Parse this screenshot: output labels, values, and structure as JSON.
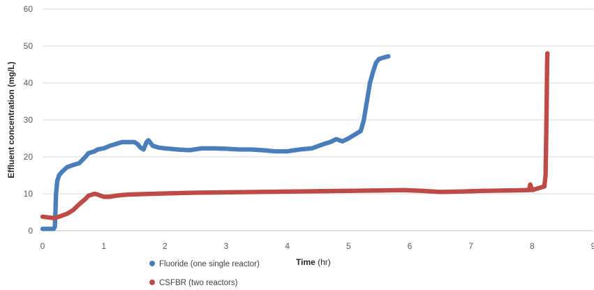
{
  "chart_data": {
    "type": "scatter",
    "title": "",
    "xlabel": {
      "bold": "Time",
      "rest": " (hr)"
    },
    "ylabel": "Effluent concentration (mg/L)",
    "xlim": [
      0,
      9
    ],
    "ylim": [
      0,
      60
    ],
    "x_ticks": [
      "0",
      "1",
      "2",
      "3",
      "4",
      "5",
      "6",
      "7",
      "8",
      "9"
    ],
    "y_ticks": [
      "0",
      "10",
      "20",
      "30",
      "40",
      "50",
      "60"
    ],
    "grid": {
      "horizontal": true,
      "vertical": false
    },
    "legend_position": "bottom-left",
    "series": [
      {
        "name": "Fluoride (one single reactor)",
        "color": "#4a7ebb",
        "points": [
          [
            0.0,
            0.5
          ],
          [
            0.1,
            0.5
          ],
          [
            0.18,
            0.5
          ],
          [
            0.2,
            1.0
          ],
          [
            0.21,
            5.0
          ],
          [
            0.22,
            10.0
          ],
          [
            0.24,
            13.5
          ],
          [
            0.27,
            15.0
          ],
          [
            0.32,
            16.0
          ],
          [
            0.4,
            17.2
          ],
          [
            0.5,
            17.8
          ],
          [
            0.6,
            18.3
          ],
          [
            0.7,
            20.0
          ],
          [
            0.75,
            21.0
          ],
          [
            0.85,
            21.5
          ],
          [
            0.9,
            22.0
          ],
          [
            1.0,
            22.3
          ],
          [
            1.1,
            23.0
          ],
          [
            1.2,
            23.5
          ],
          [
            1.3,
            24.0
          ],
          [
            1.4,
            24.0
          ],
          [
            1.5,
            24.0
          ],
          [
            1.55,
            23.5
          ],
          [
            1.6,
            22.5
          ],
          [
            1.65,
            22.0
          ],
          [
            1.7,
            24.0
          ],
          [
            1.73,
            24.5
          ],
          [
            1.8,
            23.0
          ],
          [
            1.9,
            22.5
          ],
          [
            2.0,
            22.3
          ],
          [
            2.2,
            22.0
          ],
          [
            2.4,
            21.8
          ],
          [
            2.6,
            22.3
          ],
          [
            2.8,
            22.3
          ],
          [
            3.0,
            22.2
          ],
          [
            3.2,
            22.0
          ],
          [
            3.4,
            22.0
          ],
          [
            3.6,
            21.8
          ],
          [
            3.8,
            21.5
          ],
          [
            4.0,
            21.5
          ],
          [
            4.2,
            22.0
          ],
          [
            4.4,
            22.3
          ],
          [
            4.6,
            23.5
          ],
          [
            4.7,
            24.0
          ],
          [
            4.8,
            24.8
          ],
          [
            4.9,
            24.2
          ],
          [
            5.0,
            25.0
          ],
          [
            5.1,
            26.0
          ],
          [
            5.2,
            27.0
          ],
          [
            5.25,
            30.0
          ],
          [
            5.3,
            35.0
          ],
          [
            5.35,
            40.0
          ],
          [
            5.4,
            43.0
          ],
          [
            5.45,
            45.5
          ],
          [
            5.5,
            46.5
          ],
          [
            5.6,
            47.0
          ],
          [
            5.65,
            47.2
          ]
        ]
      },
      {
        "name": "CSFBR (two reactors)",
        "color": "#be4b48",
        "points": [
          [
            0.0,
            3.8
          ],
          [
            0.1,
            3.6
          ],
          [
            0.2,
            3.4
          ],
          [
            0.3,
            4.0
          ],
          [
            0.4,
            4.6
          ],
          [
            0.5,
            5.6
          ],
          [
            0.6,
            7.2
          ],
          [
            0.7,
            8.6
          ],
          [
            0.75,
            9.5
          ],
          [
            0.85,
            10.0
          ],
          [
            0.9,
            9.8
          ],
          [
            1.0,
            9.2
          ],
          [
            1.1,
            9.2
          ],
          [
            1.2,
            9.5
          ],
          [
            1.4,
            9.8
          ],
          [
            1.6,
            9.9
          ],
          [
            1.8,
            10.0
          ],
          [
            2.0,
            10.1
          ],
          [
            2.5,
            10.3
          ],
          [
            3.0,
            10.4
          ],
          [
            3.5,
            10.5
          ],
          [
            4.0,
            10.6
          ],
          [
            4.5,
            10.7
          ],
          [
            5.0,
            10.8
          ],
          [
            5.5,
            10.9
          ],
          [
            5.9,
            11.0
          ],
          [
            6.2,
            10.8
          ],
          [
            6.5,
            10.5
          ],
          [
            6.8,
            10.6
          ],
          [
            7.2,
            10.8
          ],
          [
            7.6,
            10.9
          ],
          [
            7.95,
            11.0
          ],
          [
            7.97,
            12.5
          ],
          [
            8.0,
            11.0
          ],
          [
            8.1,
            11.5
          ],
          [
            8.2,
            12.0
          ],
          [
            8.22,
            15.0
          ],
          [
            8.23,
            25.0
          ],
          [
            8.24,
            37.0
          ],
          [
            8.245,
            45.0
          ],
          [
            8.25,
            48.0
          ]
        ]
      }
    ]
  }
}
